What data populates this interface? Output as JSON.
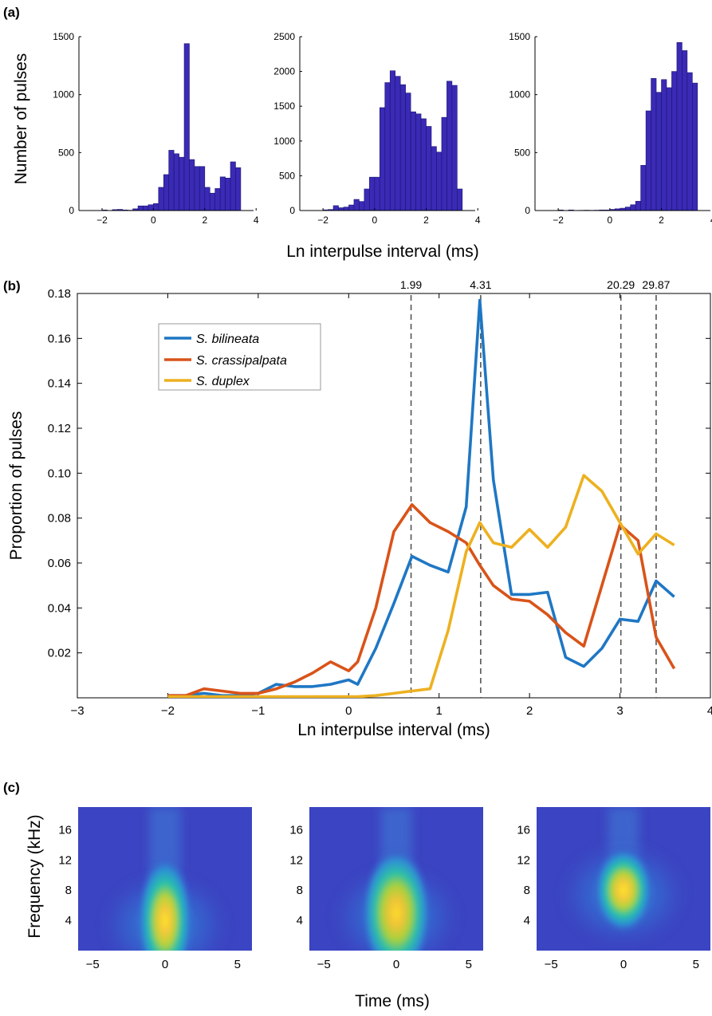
{
  "panels": {
    "a": "(a)",
    "b": "(b)",
    "c": "(c)"
  },
  "chart_data": [
    {
      "type": "bar",
      "panel": "(a)",
      "title": "S. bilineata",
      "ylabel": "Number of pulses",
      "xlabel": "Ln interpulse interval (ms)",
      "xlim": [
        -2.9,
        3.9
      ],
      "ylim": [
        0,
        1500
      ],
      "xticks": [
        -2,
        0,
        2,
        4
      ],
      "yticks": [
        0,
        500,
        1000,
        1500
      ],
      "bin_width": 0.2,
      "bins_start": -2.0,
      "values": [
        5,
        0,
        8,
        10,
        5,
        3,
        15,
        40,
        40,
        50,
        60,
        200,
        310,
        520,
        490,
        460,
        1440,
        440,
        380,
        380,
        200,
        150,
        190,
        290,
        280,
        420,
        370
      ],
      "color": "#3a2ab5"
    },
    {
      "type": "bar",
      "panel": "(a)",
      "title": "S. crassipalpata",
      "xlim": [
        -2.9,
        3.9
      ],
      "ylim": [
        0,
        2500
      ],
      "xticks": [
        -2,
        0,
        2,
        4
      ],
      "yticks": [
        0,
        500,
        1000,
        1500,
        2000,
        2500
      ],
      "bin_width": 0.2,
      "bins_start": -2.0,
      "values": [
        10,
        15,
        70,
        40,
        50,
        80,
        160,
        130,
        310,
        480,
        480,
        1480,
        1840,
        2010,
        1930,
        1810,
        1690,
        1420,
        1390,
        1320,
        1210,
        920,
        840,
        1340,
        1860,
        1800,
        310
      ],
      "color": "#3a2ab5"
    },
    {
      "type": "bar",
      "panel": "(a)",
      "title": "S. duplex",
      "xlim": [
        -2.9,
        3.9
      ],
      "ylim": [
        0,
        1500
      ],
      "xticks": [
        -2,
        0,
        2,
        4
      ],
      "yticks": [
        0,
        500,
        1000,
        1500
      ],
      "bin_width": 0.2,
      "bins_start": -2.0,
      "values": [
        5,
        0,
        5,
        0,
        2,
        3,
        2,
        3,
        5,
        5,
        10,
        15,
        20,
        30,
        50,
        80,
        390,
        860,
        1140,
        1020,
        1130,
        1060,
        1200,
        1450,
        1380,
        1190,
        1100
      ],
      "color": "#3a2ab5"
    },
    {
      "type": "line",
      "panel": "(b)",
      "xlabel": "Ln interpulse interval (ms)",
      "ylabel": "Proportion of pulses",
      "xlim": [
        -3,
        4
      ],
      "ylim": [
        0,
        0.18
      ],
      "xticks": [
        -3,
        -2,
        -1,
        0,
        1,
        2,
        3,
        4
      ],
      "yticks": [
        0.02,
        0.04,
        0.06,
        0.08,
        0.1,
        0.12,
        0.14,
        0.16,
        0.18
      ],
      "ytick_labels": [
        "0.02",
        "0.04",
        "0.06",
        "0.08",
        "0.10",
        "0.12",
        "0.14",
        "0.16",
        "0.18"
      ],
      "legend_position": "upper-left",
      "x": [
        -2.0,
        -1.8,
        -1.6,
        -1.4,
        -1.2,
        -1.0,
        -0.8,
        -0.6,
        -0.4,
        -0.2,
        0.0,
        0.1,
        0.3,
        0.5,
        0.7,
        0.9,
        1.1,
        1.3,
        1.45,
        1.6,
        1.8,
        2.0,
        2.2,
        2.4,
        2.6,
        2.8,
        3.0,
        3.2,
        3.4,
        3.6
      ],
      "series": [
        {
          "name": "S. bilineata",
          "color": "#1f77c4",
          "values": [
            0.001,
            0.001,
            0.002,
            0.001,
            0.001,
            0.002,
            0.006,
            0.005,
            0.005,
            0.006,
            0.008,
            0.006,
            0.022,
            0.042,
            0.063,
            0.059,
            0.056,
            0.085,
            0.177,
            0.097,
            0.046,
            0.046,
            0.047,
            0.018,
            0.014,
            0.022,
            0.035,
            0.034,
            0.052,
            0.045
          ]
        },
        {
          "name": "S. crassipalpata",
          "color": "#d95319",
          "values": [
            0.001,
            0.001,
            0.004,
            0.003,
            0.002,
            0.002,
            0.004,
            0.007,
            0.011,
            0.016,
            0.012,
            0.016,
            0.04,
            0.074,
            0.086,
            0.078,
            0.074,
            0.069,
            0.059,
            0.05,
            0.044,
            0.043,
            0.037,
            0.029,
            0.023,
            0.05,
            0.077,
            0.07,
            0.027,
            0.013
          ]
        },
        {
          "name": "S. duplex",
          "color": "#edb120",
          "values": [
            0.0005,
            0.0005,
            0.0005,
            0.0005,
            0.0005,
            0.0005,
            0.0005,
            0.0005,
            0.0005,
            0.0005,
            0.0005,
            0.0005,
            0.001,
            0.002,
            0.003,
            0.004,
            0.03,
            0.065,
            0.078,
            0.069,
            0.067,
            0.075,
            0.067,
            0.076,
            0.099,
            0.092,
            0.078,
            0.064,
            0.073,
            0.068
          ]
        }
      ],
      "vlines": [
        {
          "x": 0.69,
          "label": "1.99"
        },
        {
          "x": 1.46,
          "label": "4.31"
        },
        {
          "x": 3.01,
          "label": "20.29"
        },
        {
          "x": 3.4,
          "label": "29.87"
        }
      ]
    },
    {
      "type": "heatmap",
      "panel": "(c)",
      "title": "S. bilineata",
      "ylabel": "Frequency (kHz)",
      "xlabel": "Time (ms)",
      "xlim": [
        -6,
        6
      ],
      "ylim": [
        0,
        19
      ],
      "xticks": [
        -5,
        0,
        5
      ],
      "yticks": [
        4,
        8,
        12,
        16
      ],
      "peak": {
        "t": 0,
        "f": 4
      }
    },
    {
      "type": "heatmap",
      "panel": "(c)",
      "title": "S. crassipalpata",
      "xlim": [
        -6,
        6
      ],
      "ylim": [
        0,
        19
      ],
      "xticks": [
        -5,
        0,
        5
      ],
      "yticks": [
        4,
        8,
        12,
        16
      ],
      "peak": {
        "t": 0,
        "f": 5
      }
    },
    {
      "type": "heatmap",
      "panel": "(c)",
      "title": "S. duplex",
      "xlim": [
        -6,
        6
      ],
      "ylim": [
        0,
        19
      ],
      "xticks": [
        -5,
        0,
        5
      ],
      "yticks": [
        4,
        8,
        12,
        16
      ],
      "peak": {
        "t": 0,
        "f": 8
      }
    }
  ]
}
